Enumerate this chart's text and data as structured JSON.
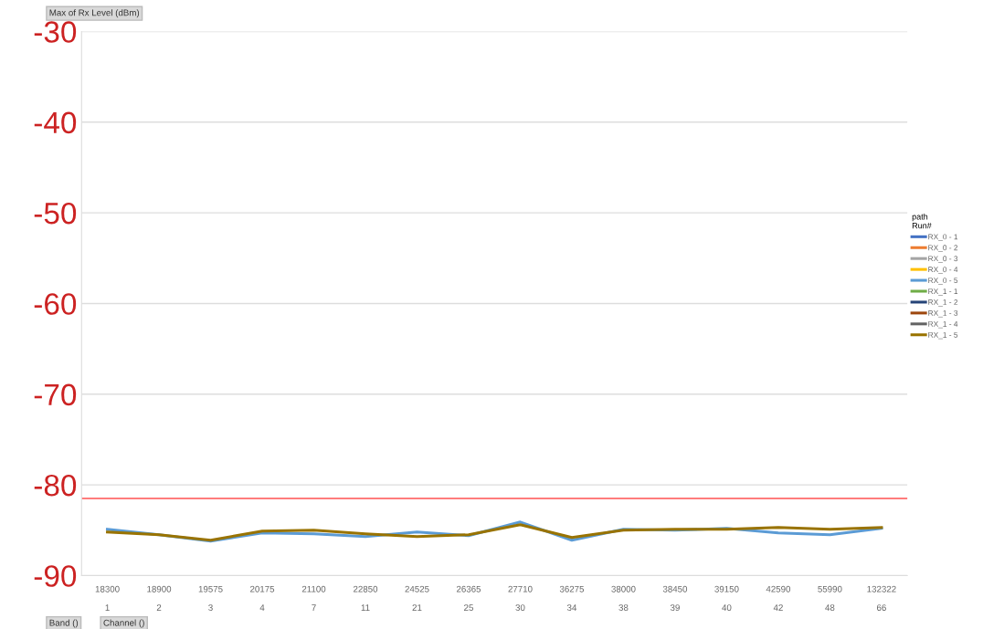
{
  "chart_data": {
    "type": "line",
    "title": "Max of Rx Level (dBm)",
    "legend_title": "path\nRun#",
    "categories": [
      "18300\n1",
      "18900\n2",
      "19575\n3",
      "20175\n4",
      "21100\n7",
      "22850\n11",
      "24525\n21",
      "26365\n25",
      "27710\n30",
      "36275\n34",
      "38000\n38",
      "38450\n39",
      "39150\n40",
      "42590\n42",
      "55990\n48",
      "132322\n66"
    ],
    "series": [
      {
        "name": "RX_0 - 1",
        "color": "#4472c4",
        "values": [
          null,
          null,
          null,
          null,
          null,
          null,
          null,
          null,
          null,
          null,
          null,
          null,
          null,
          null,
          null,
          null
        ]
      },
      {
        "name": "RX_0 - 2",
        "color": "#ed7d31",
        "values": [
          null,
          null,
          null,
          null,
          null,
          null,
          null,
          null,
          null,
          null,
          null,
          null,
          null,
          null,
          null,
          null
        ]
      },
      {
        "name": "RX_0 - 3",
        "color": "#a5a5a5",
        "values": [
          null,
          null,
          null,
          null,
          null,
          null,
          null,
          null,
          null,
          null,
          null,
          null,
          null,
          null,
          null,
          null
        ]
      },
      {
        "name": "RX_0 - 4",
        "color": "#ffc000",
        "values": [
          null,
          null,
          null,
          null,
          null,
          null,
          null,
          null,
          null,
          null,
          null,
          null,
          null,
          null,
          null,
          null
        ]
      },
      {
        "name": "RX_0 - 5",
        "color": "#5b9bd5",
        "values": [
          -84.9,
          -85.5,
          -86.2,
          -85.3,
          -85.4,
          -85.7,
          -85.2,
          -85.6,
          -84.1,
          -86.1,
          -84.9,
          -85.0,
          -84.8,
          -85.3,
          -85.5,
          -84.8
        ]
      },
      {
        "name": "RX_1 - 1",
        "color": "#70ad47",
        "values": [
          null,
          null,
          null,
          null,
          null,
          null,
          null,
          null,
          null,
          null,
          null,
          null,
          null,
          null,
          null,
          null
        ]
      },
      {
        "name": "RX_1 - 2",
        "color": "#264478",
        "values": [
          null,
          null,
          null,
          null,
          null,
          null,
          null,
          null,
          null,
          null,
          null,
          null,
          null,
          null,
          null,
          null
        ]
      },
      {
        "name": "RX_1 - 3",
        "color": "#9e480e",
        "values": [
          null,
          null,
          null,
          null,
          null,
          null,
          null,
          null,
          null,
          null,
          null,
          null,
          null,
          null,
          null,
          null
        ]
      },
      {
        "name": "RX_1 - 4",
        "color": "#636363",
        "values": [
          null,
          null,
          null,
          null,
          null,
          null,
          null,
          null,
          null,
          null,
          null,
          null,
          null,
          null,
          null,
          null
        ]
      },
      {
        "name": "RX_1 - 5",
        "color": "#997300",
        "values": [
          -85.2,
          -85.5,
          -86.1,
          -85.1,
          -85.0,
          -85.4,
          -85.7,
          -85.5,
          -84.4,
          -85.8,
          -85.0,
          -84.9,
          -84.9,
          -84.7,
          -84.9,
          -84.7
        ]
      }
    ],
    "ylim": [
      -90,
      -30
    ],
    "yticks": [
      -30,
      -40,
      -50,
      -60,
      -70,
      -80,
      -90
    ],
    "grid": "y",
    "legend": "right",
    "marker": "none",
    "line_style": "solid",
    "ref_lines": [
      {
        "axis": "y",
        "value": -81.5,
        "color": "#ff5050"
      }
    ],
    "annotations": [
      "Band ()",
      "Channel ()"
    ]
  }
}
